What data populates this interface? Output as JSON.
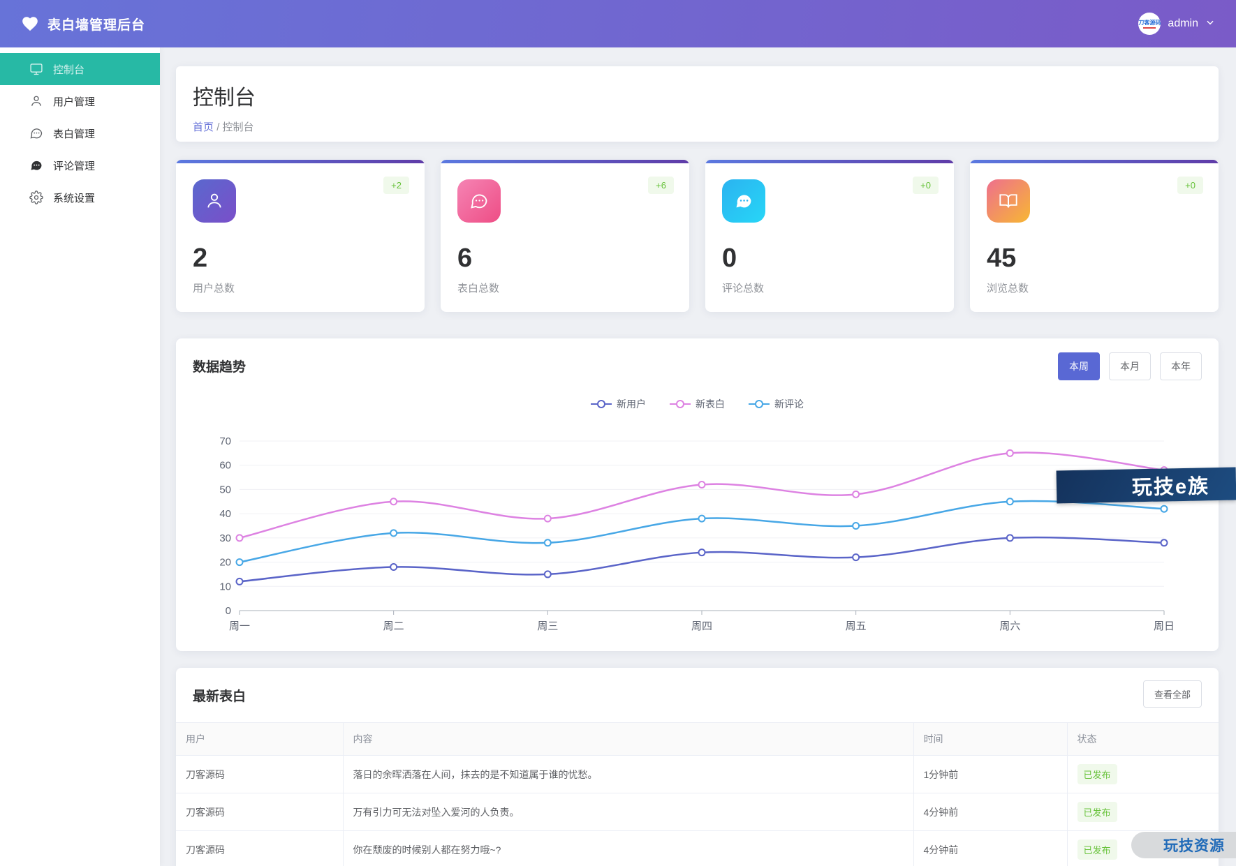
{
  "header": {
    "app_title": "表白墙管理后台",
    "username": "admin",
    "avatar_text": "刀客源码"
  },
  "sidebar": {
    "items": [
      {
        "icon": "dashboard-icon",
        "label": "控制台",
        "active": true
      },
      {
        "icon": "user-icon",
        "label": "用户管理",
        "active": false
      },
      {
        "icon": "confession-icon",
        "label": "表白管理",
        "active": false
      },
      {
        "icon": "comment-icon",
        "label": "评论管理",
        "active": false
      },
      {
        "icon": "settings-icon",
        "label": "系统设置",
        "active": false
      }
    ]
  },
  "page": {
    "title": "控制台",
    "breadcrumb": {
      "home": "首页",
      "separator": "/",
      "current": "控制台"
    }
  },
  "stats": [
    {
      "value": "2",
      "label": "用户总数",
      "delta": "+2",
      "icon": "user-icon",
      "gradient": [
        "#5a68ce",
        "#7a4fc9"
      ]
    },
    {
      "value": "6",
      "label": "表白总数",
      "delta": "+6",
      "icon": "confession-bubble-icon",
      "gradient": [
        "#f584b4",
        "#ee4d85"
      ]
    },
    {
      "value": "0",
      "label": "评论总数",
      "delta": "+0",
      "icon": "comment-bubble-icon",
      "gradient": [
        "#2bb3f0",
        "#27d6f7"
      ]
    },
    {
      "value": "45",
      "label": "浏览总数",
      "delta": "+0",
      "icon": "book-open-icon",
      "gradient": [
        "#ee6f8e",
        "#f7b733"
      ]
    }
  ],
  "trend": {
    "title": "数据趋势",
    "tabs": [
      {
        "label": "本周",
        "active": true
      },
      {
        "label": "本月",
        "active": false
      },
      {
        "label": "本年",
        "active": false
      }
    ]
  },
  "chart_data": {
    "type": "line",
    "title": "数据趋势",
    "x": [
      "周一",
      "周二",
      "周三",
      "周四",
      "周五",
      "周六",
      "周日"
    ],
    "series": [
      {
        "name": "新用户",
        "color": "#5a64c8",
        "values": [
          12,
          18,
          15,
          24,
          22,
          30,
          28
        ]
      },
      {
        "name": "新表白",
        "color": "#dd82e2",
        "values": [
          30,
          45,
          38,
          52,
          48,
          65,
          58
        ]
      },
      {
        "name": "新评论",
        "color": "#47a7e6",
        "values": [
          20,
          32,
          28,
          38,
          35,
          45,
          42
        ]
      }
    ],
    "xlabel": "",
    "ylabel": "",
    "ylim": [
      0,
      70
    ],
    "ytick_step": 10,
    "grid": true,
    "smooth": true,
    "legend_position": "top-center"
  },
  "latest": {
    "title": "最新表白",
    "view_all_label": "查看全部",
    "columns": [
      "用户",
      "内容",
      "时间",
      "状态"
    ],
    "rows": [
      {
        "user": "刀客源码",
        "content": "落日的余晖洒落在人间，抹去的是不知道属于谁的忧愁。",
        "time": "1分钟前",
        "status": "已发布"
      },
      {
        "user": "刀客源码",
        "content": "万有引力可无法对坠入爱河的人负责。",
        "time": "4分钟前",
        "status": "已发布"
      },
      {
        "user": "刀客源码",
        "content": "你在颓废的时候别人都在努力哦~?",
        "time": "4分钟前",
        "status": "已发布"
      }
    ]
  },
  "watermarks": {
    "banner": "玩技e族",
    "pill": "玩技资源"
  },
  "theme": {
    "header_gradient": [
      "#6773d8",
      "#7a5bc8"
    ],
    "active_menu_bg": "#27b9a5",
    "accent": "#5968d4",
    "link": "#6672d8",
    "success_text": "#67c23a",
    "success_bg": "#f0f9eb",
    "card_accent_gradient": [
      "#5b79e0",
      "#5f3ca8"
    ]
  }
}
